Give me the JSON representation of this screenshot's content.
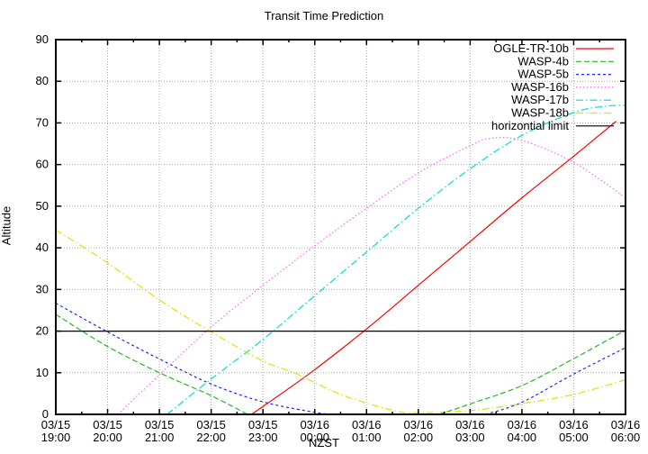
{
  "chart_data": {
    "type": "line",
    "title": "Transit Time Prediction",
    "xlabel": "NZST",
    "ylabel": "Altitude",
    "ylim": [
      0,
      90
    ],
    "y_ticks": [
      0,
      10,
      20,
      30,
      40,
      50,
      60,
      70,
      80,
      90
    ],
    "x_hours_span": 11,
    "x_ticks": [
      {
        "date": "03/15",
        "time": "19:00"
      },
      {
        "date": "03/15",
        "time": "20:00"
      },
      {
        "date": "03/15",
        "time": "21:00"
      },
      {
        "date": "03/15",
        "time": "22:00"
      },
      {
        "date": "03/15",
        "time": "23:00"
      },
      {
        "date": "03/16",
        "time": "00:00"
      },
      {
        "date": "03/16",
        "time": "01:00"
      },
      {
        "date": "03/16",
        "time": "02:00"
      },
      {
        "date": "03/16",
        "time": "03:00"
      },
      {
        "date": "03/16",
        "time": "04:00"
      },
      {
        "date": "03/16",
        "time": "05:00"
      },
      {
        "date": "03/16",
        "time": "06:00"
      }
    ],
    "x_minor_per_major": 2,
    "grid": true,
    "grid_color": "#a8a8a8",
    "axis_color": "#000000",
    "legend_position": "top-right-inside",
    "series": [
      {
        "name": "OGLE-TR-10b",
        "color": "#ff0000",
        "dash": "",
        "segments": [
          [
            [
              3.78,
              0
            ],
            [
              4.92,
              10
            ],
            [
              6,
              20.5
            ],
            [
              7,
              31
            ],
            [
              8,
              41.5
            ],
            [
              9,
              52
            ],
            [
              10,
              62
            ],
            [
              10.82,
              70.4
            ]
          ]
        ]
      },
      {
        "name": "WASP-4b",
        "color": "#22bb22",
        "dash": "6,3",
        "segments": [
          [
            [
              0,
              24
            ],
            [
              1,
              16.3
            ],
            [
              2,
              10
            ],
            [
              3,
              4.5
            ],
            [
              3.7,
              0
            ]
          ],
          [
            [
              7.4,
              0
            ],
            [
              8,
              2.5
            ],
            [
              9,
              6.9
            ],
            [
              10,
              13.4
            ],
            [
              11,
              20.2
            ]
          ]
        ]
      },
      {
        "name": "WASP-5b",
        "color": "#2222ee",
        "dash": "3,3",
        "segments": [
          [
            [
              0,
              26.7
            ],
            [
              1,
              19.8
            ],
            [
              2,
              13.3
            ],
            [
              3,
              7.3
            ],
            [
              4,
              3
            ],
            [
              5,
              0.5
            ],
            [
              5.35,
              0
            ]
          ],
          [
            [
              8.3,
              0
            ],
            [
              9,
              2.9
            ],
            [
              10,
              9.7
            ],
            [
              11,
              16
            ]
          ]
        ]
      },
      {
        "name": "WASP-16b",
        "color": "#ff66ff",
        "dash": "1.5,2.5",
        "segments": [
          [
            [
              1.2,
              0
            ],
            [
              2,
              9.5
            ],
            [
              3,
              21
            ],
            [
              4,
              31
            ],
            [
              5,
              40.5
            ],
            [
              6,
              49.5
            ],
            [
              7,
              58
            ],
            [
              8,
              64.5
            ],
            [
              8.4,
              66.3
            ],
            [
              9,
              65.8
            ],
            [
              10,
              60.5
            ],
            [
              11,
              52
            ]
          ]
        ]
      },
      {
        "name": "WASP-17b",
        "color": "#00dede",
        "dash": "8,3,1.5,3",
        "segments": [
          [
            [
              2.15,
              0
            ],
            [
              3,
              8.5
            ],
            [
              4,
              18
            ],
            [
              5,
              28.5
            ],
            [
              6,
              39
            ],
            [
              7,
              49.5
            ],
            [
              8,
              59
            ],
            [
              9,
              67
            ],
            [
              10,
              72.5
            ],
            [
              10.6,
              74
            ],
            [
              11,
              74.2
            ]
          ]
        ]
      },
      {
        "name": "WASP-18b",
        "color": "#e2e200",
        "dash": "8,3,1.5,3",
        "segments": [
          [
            [
              0,
              44.3
            ],
            [
              1,
              36.4
            ],
            [
              2,
              27.5
            ],
            [
              3,
              19.8
            ],
            [
              4,
              12.8
            ],
            [
              4.6,
              10
            ],
            [
              5.5,
              4.8
            ],
            [
              6.5,
              1
            ],
            [
              7,
              0.4
            ],
            [
              8,
              0.9
            ],
            [
              9,
              2.6
            ],
            [
              10,
              4.8
            ],
            [
              11,
              8.3
            ]
          ]
        ]
      },
      {
        "name": "horizontial limit",
        "color": "#000000",
        "dash": "",
        "segments": [
          [
            [
              0,
              20
            ],
            [
              11,
              20
            ]
          ]
        ]
      }
    ]
  }
}
